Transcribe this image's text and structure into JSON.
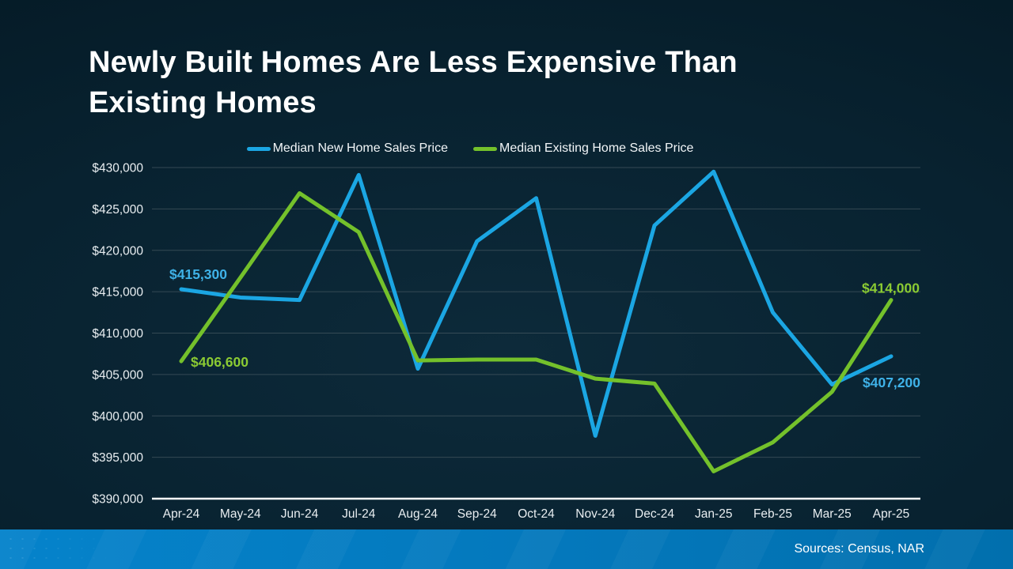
{
  "slide": {
    "title_line1": "Newly Built Homes Are Less Expensive Than",
    "title_line2": "Existing Homes",
    "source_note": "Sources: Census, NAR"
  },
  "colors": {
    "background": "#07202e",
    "title_text": "#FFFFFF",
    "axis_text": "#E9EEF1",
    "gridline": "#5A676F",
    "axis_line": "#FFFFFF",
    "new_home_line": "#1BA6E3",
    "existing_home_line": "#74C12B",
    "new_home_label": "#3FB2E8",
    "existing_home_label": "#8BCB33",
    "footer_bar_left": "#0583CB",
    "footer_bar_right": "#016FAD",
    "footer_text": "#FFFFFF"
  },
  "chart_data": {
    "type": "line",
    "title": "Newly Built Homes Are Less Expensive Than Existing Homes",
    "categories": [
      "Apr-24",
      "May-24",
      "Jun-24",
      "Jul-24",
      "Aug-24",
      "Sep-24",
      "Oct-24",
      "Nov-24",
      "Dec-24",
      "Jan-25",
      "Feb-25",
      "Mar-25",
      "Apr-25"
    ],
    "series": [
      {
        "name": "Median New Home Sales Price",
        "id": "new-home",
        "color_key": "new_home_line",
        "values": [
          415300,
          414300,
          414000,
          429100,
          405700,
          421100,
          426300,
          397600,
          423000,
          429500,
          412500,
          403800,
          407200
        ]
      },
      {
        "name": "Median Existing Home Sales Price",
        "id": "existing-home",
        "color_key": "existing_home_line",
        "values": [
          406600,
          416700,
          426900,
          422200,
          406700,
          406800,
          406800,
          404500,
          403900,
          393300,
          396800,
          402900,
          414000
        ]
      }
    ],
    "ylim": [
      390000,
      430000
    ],
    "ytick_step": 5000,
    "tick_prefix": "$",
    "xlabel": "",
    "ylabel": "",
    "grid": "horizontal-only",
    "legend_position": "top-center",
    "annotations": [
      {
        "text": "$415,300",
        "series": 0,
        "index": 0,
        "color_key": "new_home_label"
      },
      {
        "text": "$406,600",
        "series": 1,
        "index": 0,
        "color_key": "existing_home_label"
      },
      {
        "text": "$414,000",
        "series": 1,
        "index": 12,
        "color_key": "existing_home_label"
      },
      {
        "text": "$407,200",
        "series": 0,
        "index": 12,
        "color_key": "new_home_label"
      }
    ]
  }
}
